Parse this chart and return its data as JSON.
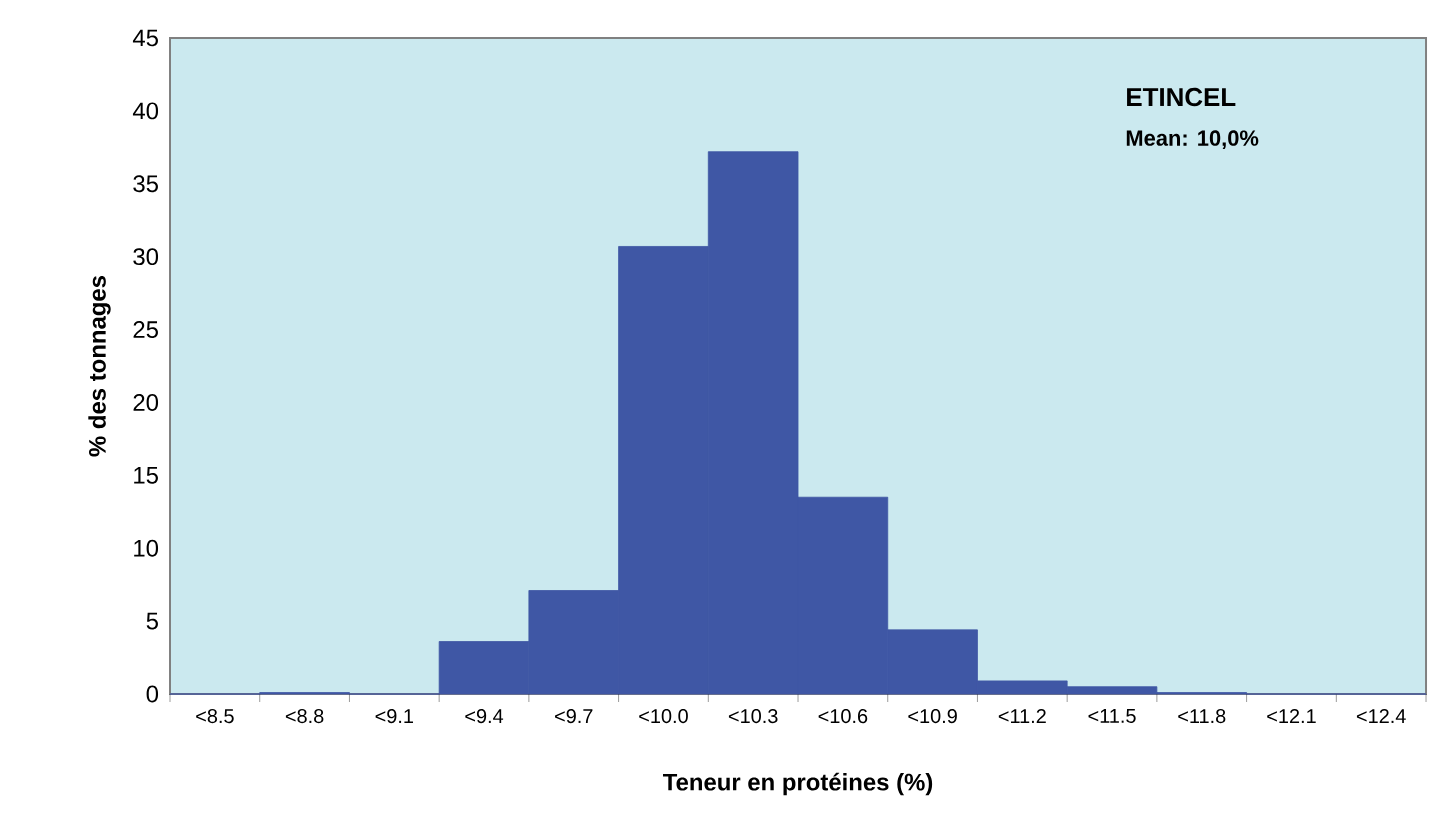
{
  "chart_data": {
    "type": "bar",
    "xlabel": "Teneur en protéines (%)",
    "ylabel": "% des tonnages",
    "categories": [
      "<8.5",
      "<8.8",
      "<9.1",
      "<9.4",
      "<9.7",
      "<10.0",
      "<10.3",
      "<10.6",
      "<10.9",
      "<11.2",
      "<11.5",
      "<11.8",
      "<12.1",
      "<12.4"
    ],
    "values": [
      0,
      0.1,
      0,
      3.6,
      7.1,
      30.7,
      37.2,
      13.5,
      4.4,
      0.9,
      0.5,
      0.1,
      0,
      0
    ],
    "color": "#3f57a5",
    "ylim": [
      0,
      45
    ],
    "yticks": [
      0,
      5,
      10,
      15,
      20,
      25,
      30,
      35,
      40,
      45
    ],
    "annotations": [
      "ETINCEL",
      "Mean: 10,0%"
    ]
  }
}
